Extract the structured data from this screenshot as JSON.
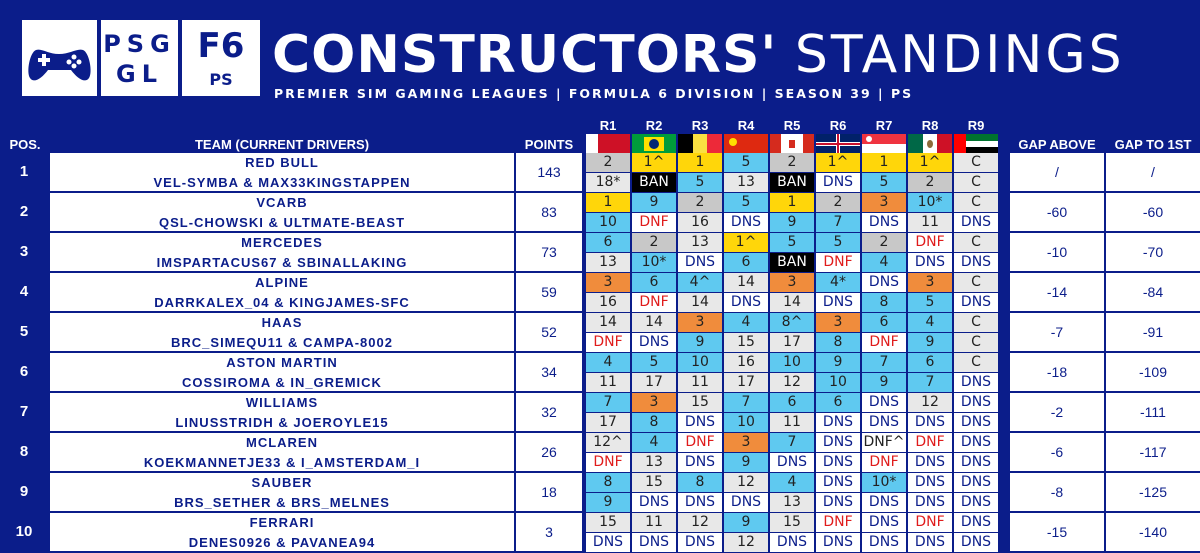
{
  "header": {
    "title_bold": "CONSTRUCTORS'",
    "title_light": "STANDINGS",
    "subtitle": "PREMIER SIM GAMING LEAGUES | FORMULA 6 DIVISION | SEASON 39 | PS",
    "logo_psgl_line1": "PSG",
    "logo_psgl_line2": "GL",
    "logo_f6_line1": "F6",
    "logo_f6_line2": "PS"
  },
  "columns": {
    "pos": "POS.",
    "team": "TEAM (CURRENT DRIVERS)",
    "points": "POINTS",
    "gap_above": "GAP ABOVE",
    "gap_first": "GAP TO 1ST"
  },
  "rounds": [
    {
      "label": "R1",
      "flag": "bahrain"
    },
    {
      "label": "R2",
      "flag": "brazil"
    },
    {
      "label": "R3",
      "flag": "belgium"
    },
    {
      "label": "R4",
      "flag": "china"
    },
    {
      "label": "R5",
      "flag": "canada"
    },
    {
      "label": "R6",
      "flag": "uk"
    },
    {
      "label": "R7",
      "flag": "singapore"
    },
    {
      "label": "R8",
      "flag": "mexico"
    },
    {
      "label": "R9",
      "flag": "uae"
    }
  ],
  "colors": {
    "background": "#0b1d8a",
    "win": "#ffd60a",
    "podium2": "#c8c8c8",
    "podium3": "#f08c3c",
    "points_finish": "#5fc9f0",
    "ban": "#000000",
    "dnf_text": "#e01c1c",
    "dns_text": "#0b1d8a",
    "neutral": "#e8e8e8"
  },
  "teams": [
    {
      "pos": "1",
      "name": "RED BULL",
      "drivers": "VEL-SYMBA & MAX33KINGSTAPPEN",
      "points": "143",
      "gap_above": "/",
      "gap_first": "/",
      "r1": [
        [
          "2",
          "p2"
        ],
        [
          "1^",
          "win"
        ],
        [
          "1",
          "win"
        ],
        [
          "5",
          "pts"
        ],
        [
          "2",
          "p2"
        ],
        [
          "1^",
          "win"
        ],
        [
          "1",
          "win"
        ],
        [
          "1^",
          "win"
        ],
        [
          "C",
          "neutral"
        ]
      ],
      "r2": [
        [
          "18*",
          "neutral"
        ],
        [
          "BAN",
          "ban"
        ],
        [
          "5",
          "pts"
        ],
        [
          "13",
          "neutral"
        ],
        [
          "BAN",
          "ban"
        ],
        [
          "DNS",
          "dns"
        ],
        [
          "5",
          "pts"
        ],
        [
          "2",
          "p2"
        ],
        [
          "C",
          "neutral"
        ]
      ]
    },
    {
      "pos": "2",
      "name": "VCARB",
      "drivers": "QSL-CHOWSKI & ULTMATE-BEAST",
      "points": "83",
      "gap_above": "-60",
      "gap_first": "-60",
      "r1": [
        [
          "1",
          "win"
        ],
        [
          "9",
          "pts"
        ],
        [
          "2",
          "p2"
        ],
        [
          "5",
          "pts"
        ],
        [
          "1",
          "win"
        ],
        [
          "2",
          "p2"
        ],
        [
          "3",
          "p3"
        ],
        [
          "10*",
          "pts"
        ],
        [
          "C",
          "neutral"
        ]
      ],
      "r2": [
        [
          "10",
          "pts"
        ],
        [
          "DNF",
          "dnf"
        ],
        [
          "16",
          "neutral"
        ],
        [
          "DNS",
          "dns"
        ],
        [
          "9",
          "pts"
        ],
        [
          "7",
          "pts"
        ],
        [
          "DNS",
          "dns"
        ],
        [
          "11",
          "neutral"
        ],
        [
          "DNS",
          "dns"
        ]
      ]
    },
    {
      "pos": "3",
      "name": "MERCEDES",
      "drivers": "IMSPARTACUS67 & SBINALLAKING",
      "points": "73",
      "gap_above": "-10",
      "gap_first": "-70",
      "r1": [
        [
          "6",
          "pts"
        ],
        [
          "2",
          "p2"
        ],
        [
          "13",
          "neutral"
        ],
        [
          "1^",
          "win"
        ],
        [
          "5",
          "pts"
        ],
        [
          "5",
          "pts"
        ],
        [
          "2",
          "p2"
        ],
        [
          "DNF",
          "dnf"
        ],
        [
          "C",
          "neutral"
        ]
      ],
      "r2": [
        [
          "13",
          "neutral"
        ],
        [
          "10*",
          "pts"
        ],
        [
          "DNS",
          "dns"
        ],
        [
          "6",
          "pts"
        ],
        [
          "BAN",
          "ban"
        ],
        [
          "DNF",
          "dnf"
        ],
        [
          "4",
          "pts"
        ],
        [
          "DNS",
          "dns"
        ],
        [
          "DNS",
          "dns"
        ]
      ]
    },
    {
      "pos": "4",
      "name": "ALPINE",
      "drivers": "DARRKALEX_04 & KINGJAMES-SFC",
      "points": "59",
      "gap_above": "-14",
      "gap_first": "-84",
      "r1": [
        [
          "3",
          "p3"
        ],
        [
          "6",
          "pts"
        ],
        [
          "4^",
          "pts"
        ],
        [
          "14",
          "neutral"
        ],
        [
          "3",
          "p3"
        ],
        [
          "4*",
          "pts"
        ],
        [
          "DNS",
          "dns"
        ],
        [
          "3",
          "p3"
        ],
        [
          "C",
          "neutral"
        ]
      ],
      "r2": [
        [
          "16",
          "neutral"
        ],
        [
          "DNF",
          "dnf"
        ],
        [
          "14",
          "neutral"
        ],
        [
          "DNS",
          "dns"
        ],
        [
          "14",
          "neutral"
        ],
        [
          "DNS",
          "dns"
        ],
        [
          "8",
          "pts"
        ],
        [
          "5",
          "pts"
        ],
        [
          "DNS",
          "dns"
        ]
      ]
    },
    {
      "pos": "5",
      "name": "HAAS",
      "drivers": "BRC_SIMEQU11 & CAMPA-8002",
      "points": "52",
      "gap_above": "-7",
      "gap_first": "-91",
      "r1": [
        [
          "14",
          "neutral"
        ],
        [
          "14",
          "neutral"
        ],
        [
          "3",
          "p3"
        ],
        [
          "4",
          "pts"
        ],
        [
          "8^",
          "pts"
        ],
        [
          "3",
          "p3"
        ],
        [
          "6",
          "pts"
        ],
        [
          "4",
          "pts"
        ],
        [
          "C",
          "neutral"
        ]
      ],
      "r2": [
        [
          "DNF",
          "dnf"
        ],
        [
          "DNS",
          "dns"
        ],
        [
          "9",
          "pts"
        ],
        [
          "15",
          "neutral"
        ],
        [
          "17",
          "neutral"
        ],
        [
          "8",
          "pts"
        ],
        [
          "DNF",
          "dnf"
        ],
        [
          "9",
          "pts"
        ],
        [
          "C",
          "neutral"
        ]
      ]
    },
    {
      "pos": "6",
      "name": "ASTON MARTIN",
      "drivers": "COSSIROMA & IN_GREMICK",
      "points": "34",
      "gap_above": "-18",
      "gap_first": "-109",
      "r1": [
        [
          "4",
          "pts"
        ],
        [
          "5",
          "pts"
        ],
        [
          "10",
          "pts"
        ],
        [
          "16",
          "neutral"
        ],
        [
          "10",
          "pts"
        ],
        [
          "9",
          "pts"
        ],
        [
          "7",
          "pts"
        ],
        [
          "6",
          "pts"
        ],
        [
          "C",
          "neutral"
        ]
      ],
      "r2": [
        [
          "11",
          "neutral"
        ],
        [
          "17",
          "neutral"
        ],
        [
          "11",
          "neutral"
        ],
        [
          "17",
          "neutral"
        ],
        [
          "12",
          "neutral"
        ],
        [
          "10",
          "pts"
        ],
        [
          "9",
          "pts"
        ],
        [
          "7",
          "pts"
        ],
        [
          "DNS",
          "dns"
        ]
      ]
    },
    {
      "pos": "7",
      "name": "WILLIAMS",
      "drivers": "LINUSSTRIDH & JOEROYLE15",
      "points": "32",
      "gap_above": "-2",
      "gap_first": "-111",
      "r1": [
        [
          "7",
          "pts"
        ],
        [
          "3",
          "p3"
        ],
        [
          "15",
          "neutral"
        ],
        [
          "7",
          "pts"
        ],
        [
          "6",
          "pts"
        ],
        [
          "6",
          "pts"
        ],
        [
          "DNS",
          "dns"
        ],
        [
          "12",
          "neutral"
        ],
        [
          "DNS",
          "dns"
        ]
      ],
      "r2": [
        [
          "17",
          "neutral"
        ],
        [
          "8",
          "pts"
        ],
        [
          "DNS",
          "dns"
        ],
        [
          "10",
          "pts"
        ],
        [
          "11",
          "neutral"
        ],
        [
          "DNS",
          "dns"
        ],
        [
          "DNS",
          "dns"
        ],
        [
          "DNS",
          "dns"
        ],
        [
          "DNS",
          "dns"
        ]
      ]
    },
    {
      "pos": "8",
      "name": "MCLAREN",
      "drivers": "KOEKMANNETJE33 & I_AMSTERDAM_I",
      "points": "26",
      "gap_above": "-6",
      "gap_first": "-117",
      "r1": [
        [
          "12^",
          "neutral"
        ],
        [
          "4",
          "pts"
        ],
        [
          "DNF",
          "dnf"
        ],
        [
          "3",
          "p3"
        ],
        [
          "7",
          "pts"
        ],
        [
          "DNS",
          "dns"
        ],
        [
          "DNF^",
          "dnf-dark"
        ],
        [
          "DNF",
          "dnf"
        ],
        [
          "DNS",
          "dns"
        ]
      ],
      "r2": [
        [
          "DNF",
          "dnf"
        ],
        [
          "13",
          "neutral"
        ],
        [
          "DNS",
          "dns"
        ],
        [
          "9",
          "pts"
        ],
        [
          "DNS",
          "dns"
        ],
        [
          "DNS",
          "dns"
        ],
        [
          "DNF",
          "dnf"
        ],
        [
          "DNS",
          "dns"
        ],
        [
          "DNS",
          "dns"
        ]
      ]
    },
    {
      "pos": "9",
      "name": "SAUBER",
      "drivers": "BRS_SETHER & BRS_MELNES",
      "points": "18",
      "gap_above": "-8",
      "gap_first": "-125",
      "r1": [
        [
          "8",
          "pts"
        ],
        [
          "15",
          "neutral"
        ],
        [
          "8",
          "pts"
        ],
        [
          "12",
          "neutral"
        ],
        [
          "4",
          "pts"
        ],
        [
          "DNS",
          "dns"
        ],
        [
          "10*",
          "pts"
        ],
        [
          "DNS",
          "dns"
        ],
        [
          "DNS",
          "dns"
        ]
      ],
      "r2": [
        [
          "9",
          "pts"
        ],
        [
          "DNS",
          "dns"
        ],
        [
          "DNS",
          "dns"
        ],
        [
          "DNS",
          "dns"
        ],
        [
          "13",
          "neutral"
        ],
        [
          "DNS",
          "dns"
        ],
        [
          "DNS",
          "dns"
        ],
        [
          "DNS",
          "dns"
        ],
        [
          "DNS",
          "dns"
        ]
      ]
    },
    {
      "pos": "10",
      "name": "FERRARI",
      "drivers": "DENES0926 & PAVANEA94",
      "points": "3",
      "gap_above": "-15",
      "gap_first": "-140",
      "r1": [
        [
          "15",
          "neutral"
        ],
        [
          "11",
          "neutral"
        ],
        [
          "12",
          "neutral"
        ],
        [
          "9",
          "pts"
        ],
        [
          "15",
          "neutral"
        ],
        [
          "DNF",
          "dnf"
        ],
        [
          "DNS",
          "dns"
        ],
        [
          "DNF",
          "dnf"
        ],
        [
          "DNS",
          "dns"
        ]
      ],
      "r2": [
        [
          "DNS",
          "dns"
        ],
        [
          "DNS",
          "dns"
        ],
        [
          "DNS",
          "dns"
        ],
        [
          "12",
          "neutral"
        ],
        [
          "DNS",
          "dns"
        ],
        [
          "DNS",
          "dns"
        ],
        [
          "DNS",
          "dns"
        ],
        [
          "DNS",
          "dns"
        ],
        [
          "DNS",
          "dns"
        ]
      ]
    }
  ]
}
